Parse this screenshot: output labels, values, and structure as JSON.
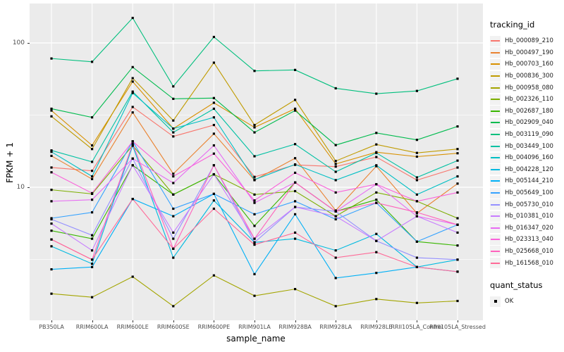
{
  "figure": {
    "panel_background": "#EBEBEB",
    "grid_color": "#FFFFFF",
    "axis_text_color": "#4D4D4D",
    "point_color": "#000000",
    "legend_key_background": "#F2F2F2"
  },
  "chart_data": {
    "type": "line",
    "title": "",
    "xlabel": "sample_name",
    "ylabel": "FPKM + 1",
    "y_scale": "log10",
    "legend_position": "right",
    "grid": true,
    "y_major_ticks": [
      {
        "label": "100",
        "value": 100
      },
      {
        "label": "10",
        "value": 10
      }
    ],
    "y_minor_values": [
      31.62,
      3.162
    ],
    "ylim": [
      1.2,
      187
    ],
    "categories": [
      "PB350LA",
      "RRIM600LA",
      "RRIM600LE",
      "RRIM600SE",
      "RRIM600PE",
      "RRIM901LA",
      "RRIM928BA",
      "RRIM928LA",
      "RRIM928LE",
      "RRII105LA_Control",
      "RRII105LA_Stressed"
    ],
    "legend": {
      "tracking_title": "tracking_id",
      "quant_title": "quant_status",
      "quant_items": [
        {
          "label": "OK",
          "shape": "black-square"
        }
      ]
    },
    "point_shape": "black-square",
    "series": [
      {
        "name": "Hb_000089_210",
        "color": "#F8766D",
        "values": [
          13.7,
          13.0,
          36,
          22.5,
          27,
          11.8,
          14.3,
          13.9,
          16.2,
          11.2,
          13.7
        ]
      },
      {
        "name": "Hb_000497_190",
        "color": "#EA8331",
        "values": [
          16.5,
          11.4,
          33,
          12.4,
          23.5,
          11.2,
          15.9,
          6.9,
          14.0,
          6.6,
          10.6
        ]
      },
      {
        "name": "Hb_000703_160",
        "color": "#D89000",
        "values": [
          34,
          19.5,
          54,
          25.5,
          38.5,
          26,
          35,
          14.5,
          17.5,
          16.3,
          17.2
        ]
      },
      {
        "name": "Hb_000836_300",
        "color": "#C09B00",
        "values": [
          31,
          18.4,
          57,
          29,
          73,
          27,
          40.3,
          15.2,
          19.8,
          17.3,
          18.4
        ]
      },
      {
        "name": "Hb_000958_080",
        "color": "#A3A500",
        "values": [
          1.83,
          1.73,
          2.4,
          1.5,
          2.45,
          1.77,
          1.97,
          1.5,
          1.68,
          1.58,
          1.63
        ]
      },
      {
        "name": "Hb_002326_110",
        "color": "#7CAE00",
        "values": [
          9.6,
          9.0,
          19.5,
          8.9,
          12.3,
          8.9,
          9.4,
          6.3,
          9.2,
          8.0,
          6.1
        ]
      },
      {
        "name": "Hb_002687_180",
        "color": "#39B600",
        "values": [
          5.0,
          4.4,
          14.2,
          8.9,
          12.3,
          5.4,
          10.8,
          6.8,
          8.2,
          4.2,
          3.95
        ]
      },
      {
        "name": "Hb_002909_040",
        "color": "#00BB4E",
        "values": [
          35,
          30.5,
          68,
          41,
          41.5,
          24,
          34,
          19.6,
          23.8,
          21.3,
          26.4
        ]
      },
      {
        "name": "Hb_003119_090",
        "color": "#00BF7D",
        "values": [
          78,
          74,
          149,
          50,
          110,
          64,
          65,
          48.5,
          44.5,
          46.5,
          56.5
        ]
      },
      {
        "name": "Hb_003449_100",
        "color": "#00C1A3",
        "values": [
          18,
          15,
          46,
          24,
          35,
          16.4,
          19.9,
          12.8,
          17.3,
          11.7,
          15.3
        ]
      },
      {
        "name": "Hb_004096_160",
        "color": "#00BFC4",
        "values": [
          17.6,
          11.9,
          45,
          25.5,
          30.5,
          11.3,
          14.4,
          11.2,
          14.2,
          8.9,
          11.9
        ]
      },
      {
        "name": "Hb_004228_120",
        "color": "#00BAE0",
        "values": [
          3.9,
          2.95,
          19.4,
          3.25,
          8.1,
          4.15,
          4.4,
          3.65,
          4.75,
          2.8,
          3.15
        ]
      },
      {
        "name": "Hb_005144_210",
        "color": "#00B0F6",
        "values": [
          2.7,
          2.8,
          8.3,
          6.3,
          9.0,
          2.5,
          6.5,
          2.35,
          2.55,
          2.8,
          2.6
        ]
      },
      {
        "name": "Hb_005649_100",
        "color": "#35A2FF",
        "values": [
          6.1,
          6.7,
          20.8,
          7.1,
          9.0,
          6.5,
          8.0,
          6.0,
          7.8,
          4.2,
          5.5
        ]
      },
      {
        "name": "Hb_005730_010",
        "color": "#9590FF",
        "values": [
          6.0,
          4.65,
          15.8,
          4.4,
          14.2,
          4.15,
          7.3,
          6.8,
          4.25,
          3.25,
          3.15
        ]
      },
      {
        "name": "Hb_010381_010",
        "color": "#C77CFF",
        "values": [
          5.6,
          3.65,
          14.2,
          4.85,
          12.3,
          4.4,
          7.3,
          6.3,
          4.25,
          6.3,
          4.85
        ]
      },
      {
        "name": "Hb_016347_020",
        "color": "#E76BF3",
        "values": [
          8.0,
          8.2,
          15.8,
          10.7,
          19.5,
          7.8,
          10.8,
          6.8,
          10.5,
          6.3,
          5.5
        ]
      },
      {
        "name": "Hb_023313_040",
        "color": "#FA62DB",
        "values": [
          12.7,
          9.1,
          20.8,
          11.9,
          17.1,
          8.1,
          12.6,
          9.2,
          10.5,
          8.0,
          9.2
        ]
      },
      {
        "name": "Hb_025668_010",
        "color": "#FF62BC",
        "values": [
          4.35,
          3.15,
          20.0,
          3.75,
          14.2,
          4.4,
          10.8,
          6.8,
          7.8,
          6.7,
          5.5
        ]
      },
      {
        "name": "Hb_161568_010",
        "color": "#FF6A98",
        "values": [
          4.35,
          3.15,
          8.3,
          3.75,
          7.1,
          4.0,
          4.85,
          3.25,
          3.55,
          2.8,
          2.6
        ]
      }
    ]
  }
}
